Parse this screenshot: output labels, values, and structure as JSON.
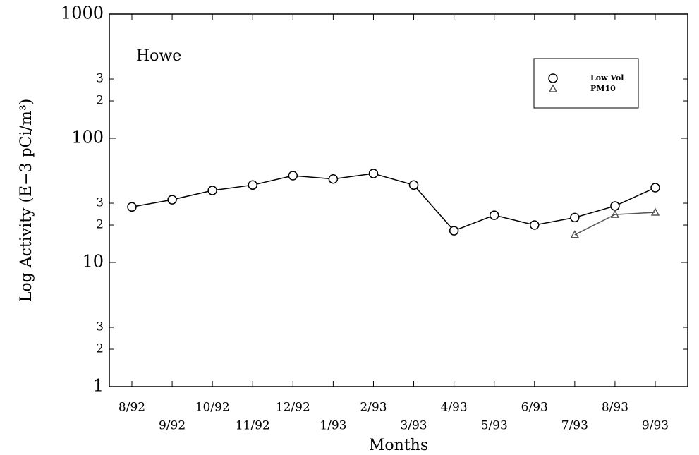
{
  "chart_data": {
    "type": "line",
    "annotation": "Howe",
    "y_label": "Log Activity (E−3 pCi/m³)",
    "x_label": "Months",
    "categories": [
      "8/92",
      "9/92",
      "10/92",
      "11/92",
      "12/92",
      "1/93",
      "2/93",
      "3/93",
      "4/93",
      "5/93",
      "6/93",
      "7/93",
      "8/93",
      "9/93"
    ],
    "series": [
      {
        "name": "Low Vol",
        "color": "#000000",
        "marker": "circle",
        "values": [
          28,
          32,
          38,
          42,
          50,
          47,
          52,
          42,
          18,
          24,
          20,
          23,
          28.5,
          40
        ]
      },
      {
        "name": "PM10",
        "color": "#555555",
        "marker": "triangle",
        "values": [
          null,
          null,
          null,
          null,
          null,
          null,
          null,
          null,
          null,
          null,
          null,
          16.7,
          24.3,
          25.3
        ]
      }
    ],
    "ylim": [
      1,
      1000
    ],
    "log_y": true,
    "yticks": [
      1,
      {
        "value": 2,
        "label": "2"
      },
      {
        "value": 3,
        "label": "3"
      },
      10,
      {
        "value": 20,
        "label": "2"
      },
      {
        "value": 30,
        "label": "3"
      },
      100,
      {
        "value": 200,
        "label": "2"
      },
      {
        "value": 300,
        "label": "3"
      },
      1000
    ],
    "legend": "upper right"
  }
}
